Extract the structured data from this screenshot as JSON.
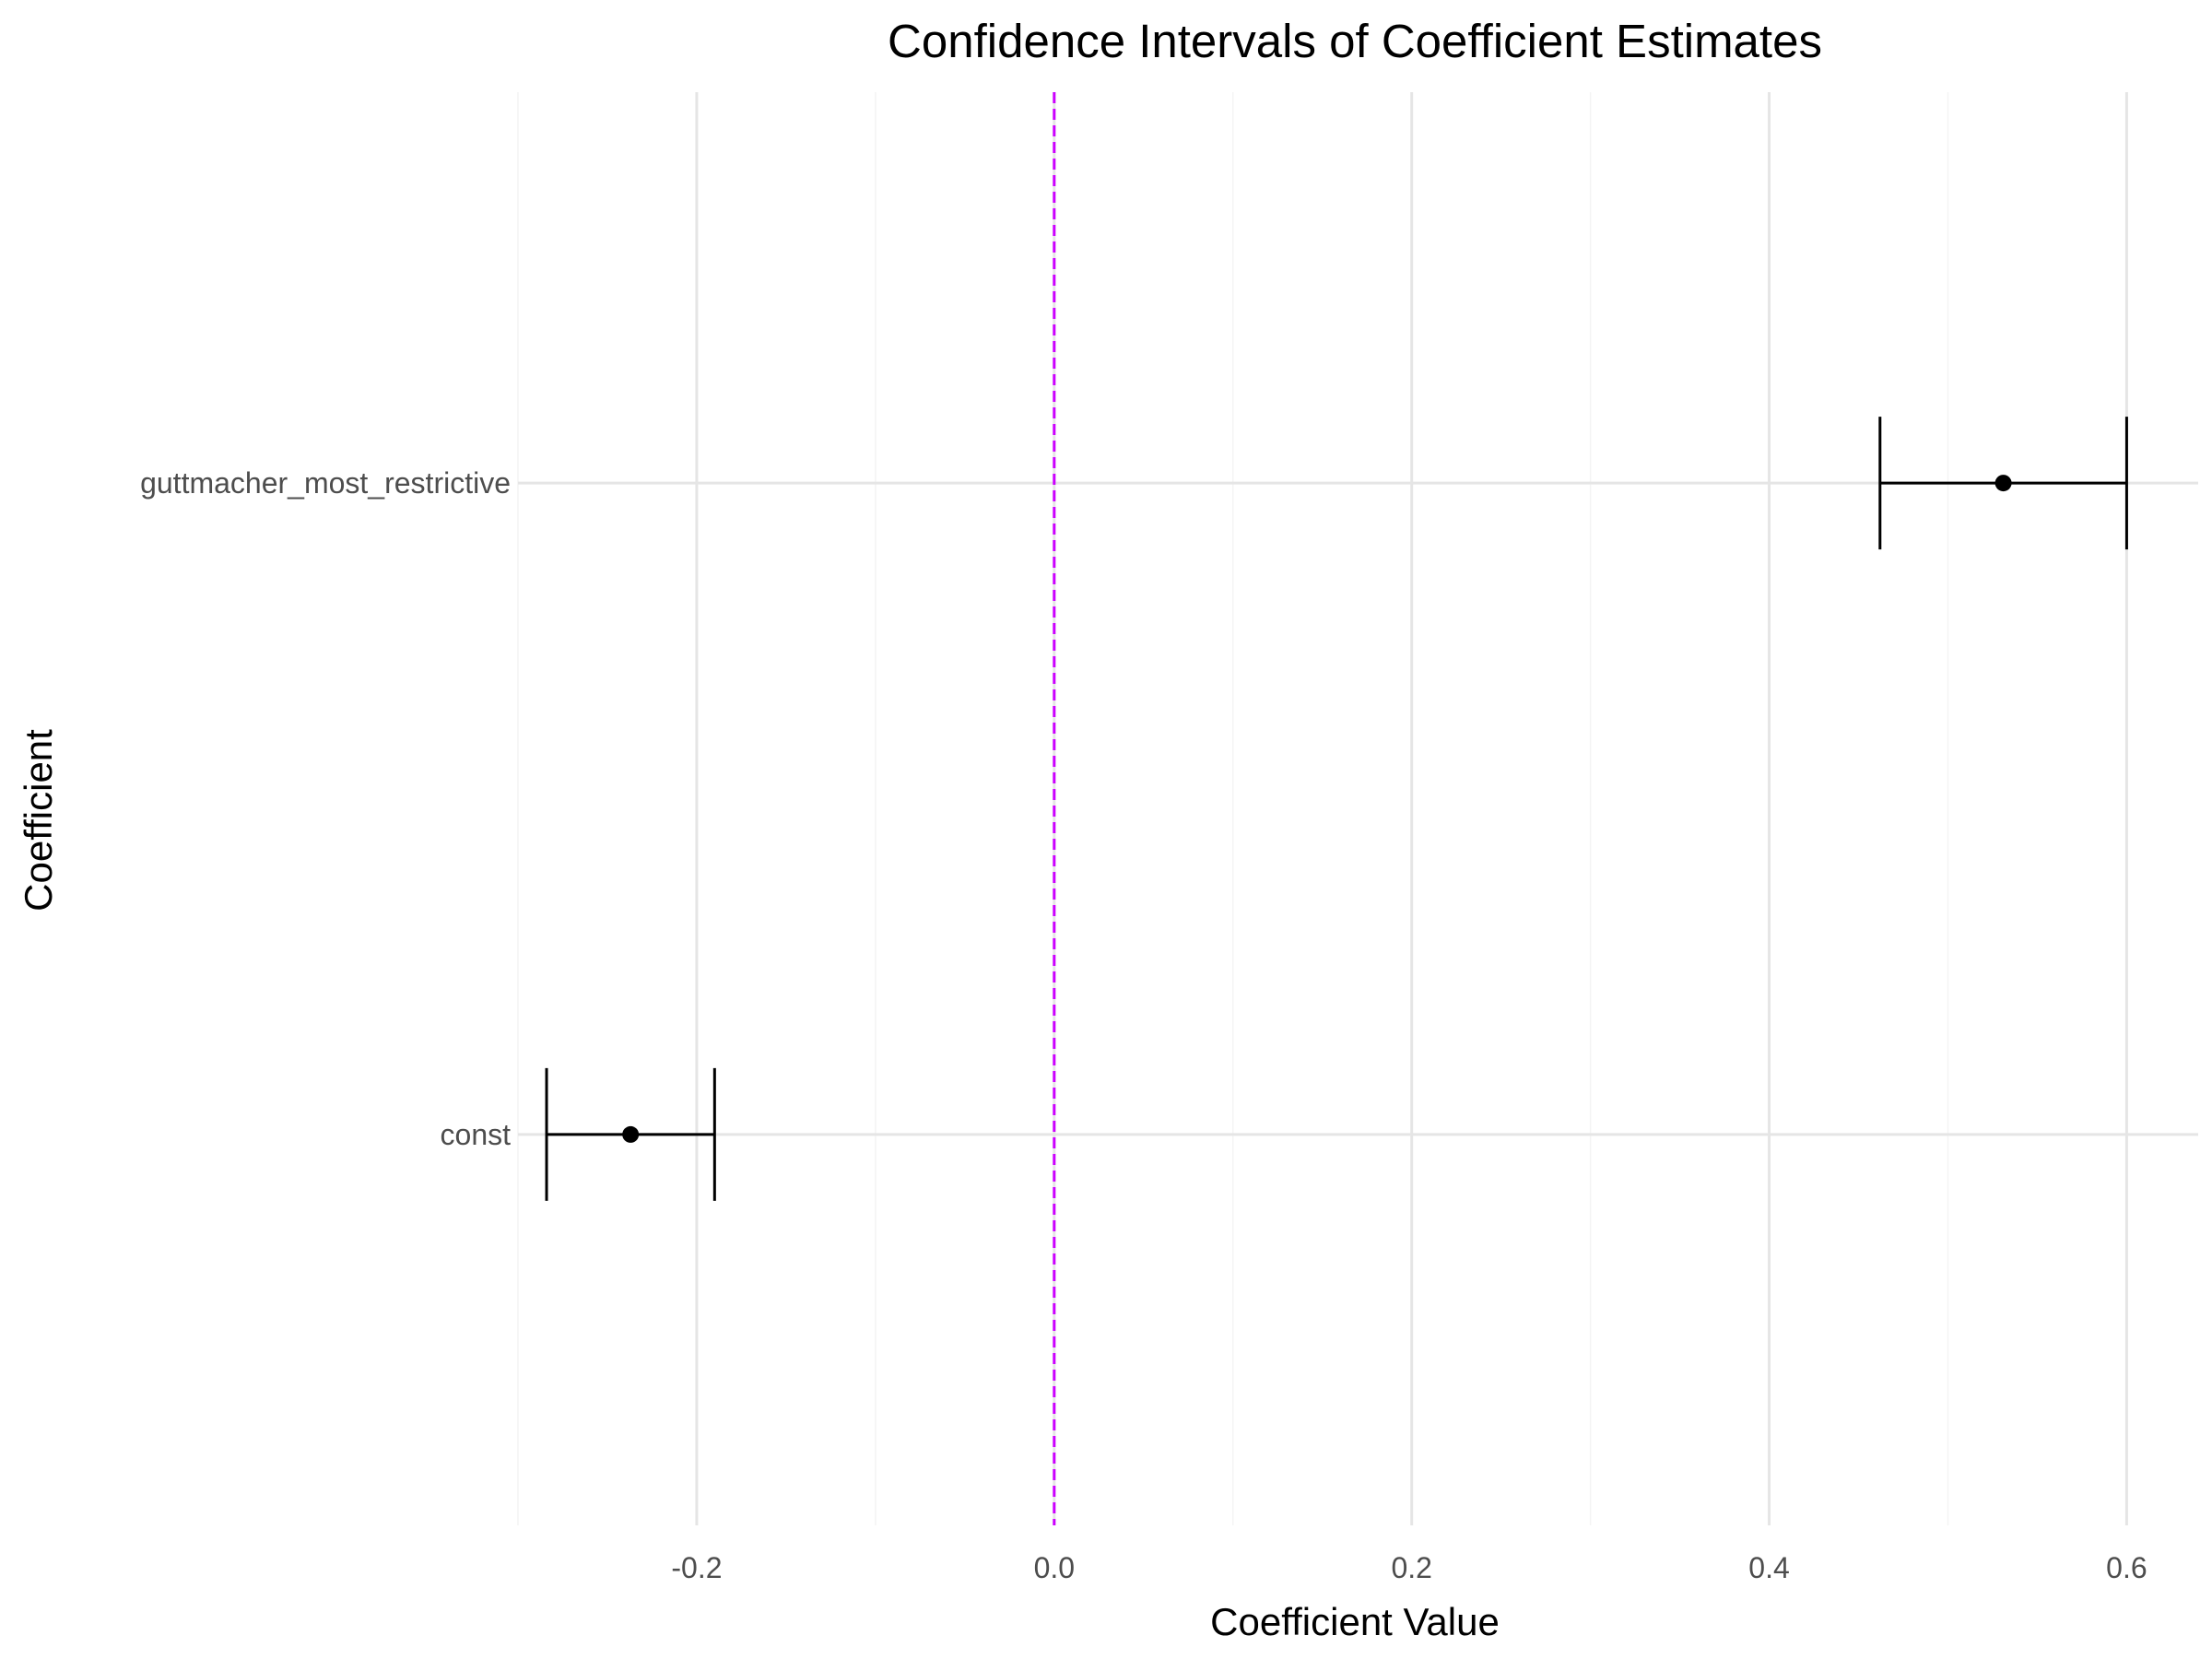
{
  "chart_data": {
    "type": "errorbar",
    "title": "Confidence Intervals of Coefficient Estimates",
    "xlabel": "Coefficient Value",
    "ylabel": "Coefficient",
    "xlim": [
      -0.3,
      0.64
    ],
    "x_ticks": [
      -0.2,
      0.0,
      0.2,
      0.4,
      0.6
    ],
    "x_tick_labels": [
      "-0.2",
      "0.0",
      "0.2",
      "0.4",
      "0.6"
    ],
    "grid": true,
    "reference_line": {
      "x": 0.0,
      "style": "dashed",
      "color": "#cc00ff"
    },
    "categories": [
      "guttmacher_most_restrictive",
      "const"
    ],
    "estimates": [
      0.531,
      -0.237
    ],
    "ci_lower": [
      0.462,
      -0.284
    ],
    "ci_upper": [
      0.6,
      -0.19
    ],
    "colors": {
      "marks": "#000000",
      "grid": "#e5e5e5",
      "grid_minor": "#f4f4f4",
      "text": "#4d4d4d"
    }
  }
}
